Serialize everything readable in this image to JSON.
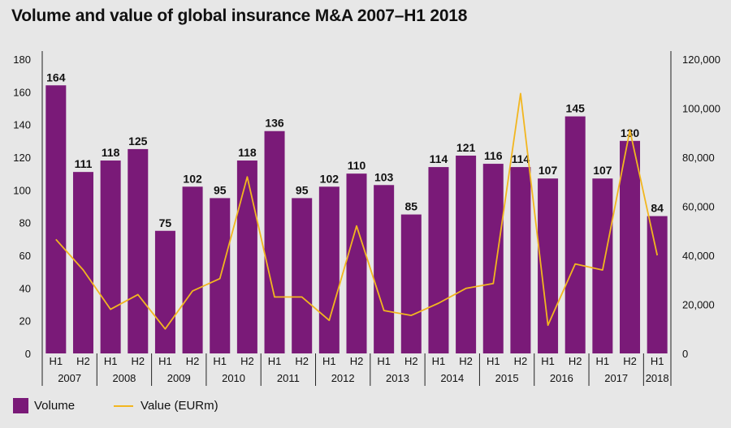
{
  "chart_data": {
    "type": "bar",
    "title": "Volume and value of global insurance M&A 2007–H1 2018",
    "half_labels": [
      "H1",
      "H2",
      "H1",
      "H2",
      "H1",
      "H2",
      "H1",
      "H2",
      "H1",
      "H2",
      "H1",
      "H2",
      "H1",
      "H2",
      "H1",
      "H2",
      "H1",
      "H2",
      "H1",
      "H2",
      "H1",
      "H2",
      "H1"
    ],
    "year_groups": [
      {
        "label": "2007",
        "count": 2
      },
      {
        "label": "2008",
        "count": 2
      },
      {
        "label": "2009",
        "count": 2
      },
      {
        "label": "2010",
        "count": 2
      },
      {
        "label": "2011",
        "count": 2
      },
      {
        "label": "2012",
        "count": 2
      },
      {
        "label": "2013",
        "count": 2
      },
      {
        "label": "2014",
        "count": 2
      },
      {
        "label": "2015",
        "count": 2
      },
      {
        "label": "2016",
        "count": 2
      },
      {
        "label": "2017",
        "count": 2
      },
      {
        "label": "2018",
        "count": 1
      }
    ],
    "series": [
      {
        "name": "Volume",
        "type": "bar",
        "axis": "left",
        "color": "#7a1a78",
        "values": [
          164,
          111,
          118,
          125,
          75,
          102,
          95,
          118,
          136,
          95,
          102,
          110,
          103,
          85,
          114,
          121,
          116,
          114,
          107,
          145,
          107,
          130,
          84
        ]
      },
      {
        "name": "Value (EURm)",
        "type": "line",
        "axis": "right",
        "color": "#f2b61f",
        "values": [
          46500,
          34000,
          18000,
          24000,
          10000,
          25500,
          30500,
          72000,
          23000,
          23000,
          13500,
          52000,
          17500,
          15500,
          20500,
          26500,
          28500,
          106000,
          11500,
          36500,
          34000,
          91000,
          40000
        ]
      }
    ],
    "y_left": {
      "min": 0,
      "max": 180,
      "ticks": [
        0,
        20,
        40,
        60,
        80,
        100,
        120,
        140,
        160,
        180
      ]
    },
    "y_right": {
      "min": 0,
      "max": 120000,
      "ticks": [
        "0",
        "20,000",
        "40,000",
        "60,000",
        "80,000",
        "100,000",
        "120,000"
      ]
    },
    "grid": false,
    "legend_position": "bottom-left"
  }
}
